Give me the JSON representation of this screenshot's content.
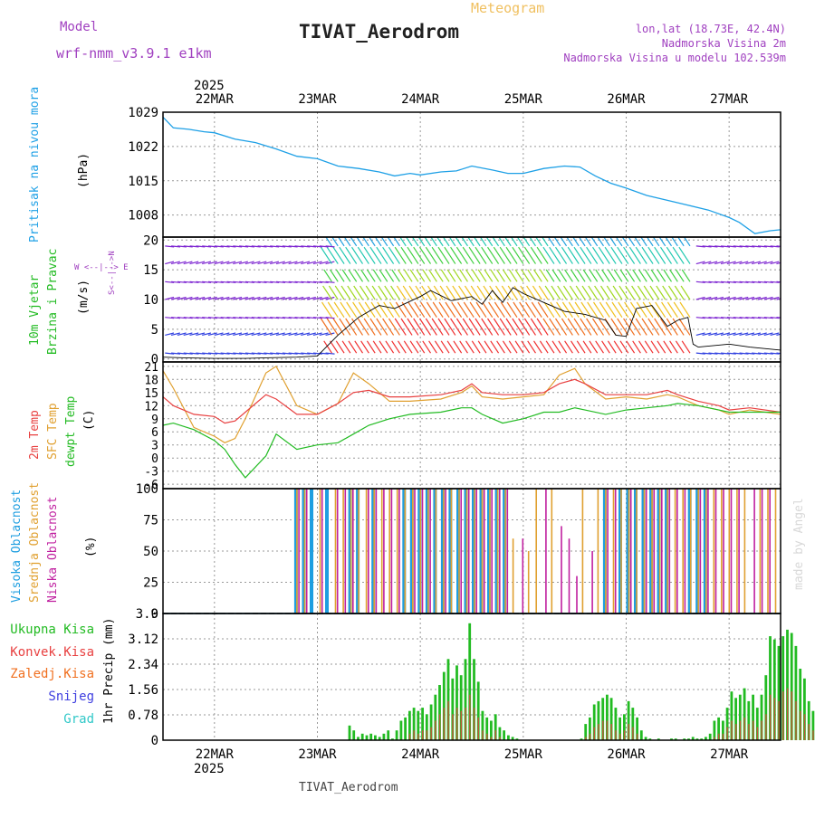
{
  "header": {
    "model_label": "Model",
    "model_name": "wrf-nmm_v3.9.1 e1km",
    "meteogram_label": "Meteogram",
    "station_title": "TIVAT_Aerodrom",
    "lonlat": "lon,lat (18.73E, 42.4N)",
    "elevation": "Nadmorska Visina 2m",
    "model_elevation": "Nadmorska Visina u modelu 102.539m",
    "footer_station": "TIVAT_Aerodrom",
    "credit": "made by Angel"
  },
  "time_axis": {
    "year": "2025",
    "days": [
      "22MAR",
      "23MAR",
      "24MAR",
      "25MAR",
      "26MAR",
      "27MAR"
    ],
    "start_day": 21.5,
    "end_day": 27.5
  },
  "colors": {
    "pressure": "#1ea0e6",
    "temp2m": "#e84040",
    "sfc": "#e0a030",
    "dewpt": "#22bb22",
    "visoka": "#1e9ee0",
    "srednja": "#e0a030",
    "niska": "#c020a0",
    "ukupna": "#22bb22",
    "konvek": "#e84040",
    "zaledj": "#f07020",
    "snijeg": "#4040e0",
    "grad": "#30c8c8",
    "axis_label": "#000000",
    "model_label": "#a040c0"
  },
  "panels": {
    "pressure": {
      "label": "Pritisak na nivou mora",
      "unit": "(hPa)",
      "ticks": [
        "1008",
        "1015",
        "1022",
        "1029"
      ]
    },
    "wind": {
      "label1": "10m Vjetar",
      "label2": "Brzina i Pravac",
      "unit": "(m/s)",
      "ticks": [
        "0",
        "5",
        "10",
        "15",
        "20"
      ],
      "compass": "W <--|--> E",
      "compass_s": "S<--|-->N"
    },
    "temperature": {
      "label_2m": "2m Temp",
      "label_sfc": "SFC Temp",
      "label_dew": "dewpt Temp",
      "unit": "(C)",
      "ticks": [
        "-6",
        "-3",
        "0",
        "3",
        "6",
        "9",
        "12",
        "15",
        "18",
        "21"
      ]
    },
    "clouds": {
      "label_high": "Visoka Oblacnost",
      "label_mid": "Srednja Oblacnost",
      "label_low": "Niska Oblacnost",
      "unit": "(%)",
      "ticks": [
        "0",
        "25",
        "50",
        "75",
        "100"
      ]
    },
    "precip": {
      "unit": "1hr Precip (mm)",
      "ticks": [
        "0",
        "0.78",
        "1.56",
        "2.34",
        "3.12",
        "3.9"
      ],
      "legend": [
        "Ukupna Kisa",
        "Konvek.Kisa",
        "Zaledj.Kisa",
        "Snijeg",
        "Grad"
      ]
    }
  },
  "chart_data": [
    {
      "type": "line",
      "ylabel": "Pritisak na nivou mora (hPa)",
      "ylim": [
        1003.5,
        1029
      ],
      "x": [
        21.5,
        21.6,
        21.75,
        21.9,
        22.0,
        22.2,
        22.4,
        22.6,
        22.8,
        23.0,
        23.2,
        23.4,
        23.6,
        23.75,
        23.9,
        24.0,
        24.2,
        24.35,
        24.5,
        24.7,
        24.85,
        25.0,
        25.2,
        25.4,
        25.55,
        25.7,
        25.85,
        26.0,
        26.2,
        26.4,
        26.6,
        26.8,
        27.0,
        27.1,
        27.25,
        27.4,
        27.5
      ],
      "series": [
        {
          "name": "Pritisak na nivou mora",
          "values": [
            1028.0,
            1025.8,
            1025.5,
            1025.0,
            1024.8,
            1023.5,
            1022.8,
            1021.5,
            1020.0,
            1019.5,
            1018.0,
            1017.5,
            1016.8,
            1016.0,
            1016.5,
            1016.2,
            1016.8,
            1017.0,
            1018.0,
            1017.2,
            1016.5,
            1016.5,
            1017.5,
            1018.0,
            1017.8,
            1016.0,
            1014.5,
            1013.5,
            1012.0,
            1011.0,
            1010.0,
            1009.0,
            1007.5,
            1006.5,
            1004.2,
            1004.8,
            1005.0
          ]
        }
      ]
    },
    {
      "type": "line",
      "ylabel": "10m Vjetar Brzina i Pravac (m/s)",
      "ylim": [
        -0.5,
        20.5
      ],
      "x": [
        21.5,
        21.7,
        22.0,
        22.3,
        22.5,
        22.8,
        23.0,
        23.2,
        23.4,
        23.6,
        23.75,
        24.0,
        24.1,
        24.3,
        24.5,
        24.6,
        24.7,
        24.8,
        24.9,
        25.0,
        25.2,
        25.4,
        25.6,
        25.8,
        25.9,
        26.0,
        26.1,
        26.25,
        26.4,
        26.5,
        26.6,
        26.65,
        26.7,
        27.0,
        27.2,
        27.5
      ],
      "series": [
        {
          "name": "wind speed",
          "values": [
            0.3,
            0.2,
            0.1,
            0.1,
            0.2,
            0.3,
            0.5,
            4.0,
            7.0,
            9.0,
            8.5,
            10.5,
            11.5,
            9.8,
            10.5,
            9.2,
            11.5,
            9.5,
            12.0,
            11.0,
            9.5,
            8.0,
            7.5,
            6.5,
            4.0,
            3.8,
            8.5,
            9.0,
            5.5,
            6.5,
            7.0,
            2.5,
            2.0,
            2.5,
            2.0,
            1.5
          ]
        }
      ]
    },
    {
      "type": "line",
      "ylabel": "(C)",
      "ylim": [
        -7,
        22
      ],
      "x": [
        21.5,
        21.6,
        21.8,
        22.0,
        22.1,
        22.2,
        22.3,
        22.5,
        22.6,
        22.8,
        23.0,
        23.2,
        23.35,
        23.5,
        23.7,
        23.9,
        24.2,
        24.4,
        24.5,
        24.6,
        24.8,
        25.0,
        25.2,
        25.35,
        25.5,
        25.6,
        25.8,
        26.0,
        26.2,
        26.4,
        26.5,
        26.7,
        26.9,
        27.0,
        27.2,
        27.5
      ],
      "series": [
        {
          "name": "2m Temp",
          "values": [
            14.0,
            12.0,
            10.0,
            9.5,
            8.0,
            8.5,
            10.5,
            14.5,
            13.5,
            10.0,
            10.0,
            12.5,
            15.0,
            15.5,
            14.0,
            14.0,
            14.5,
            15.5,
            17.0,
            15.0,
            14.5,
            14.5,
            15.0,
            17.0,
            18.0,
            17.0,
            14.5,
            14.5,
            14.5,
            15.5,
            14.5,
            13.0,
            12.0,
            11.0,
            11.5,
            10.5
          ]
        },
        {
          "name": "SFC Temp",
          "values": [
            20.0,
            16.0,
            7.0,
            5.0,
            3.5,
            4.5,
            9.0,
            19.5,
            21.0,
            12.0,
            10.0,
            12.5,
            19.5,
            17.0,
            13.0,
            13.0,
            13.5,
            15.0,
            16.5,
            14.0,
            13.5,
            14.0,
            14.5,
            19.0,
            20.5,
            17.0,
            13.5,
            14.0,
            13.5,
            14.5,
            14.0,
            12.0,
            11.0,
            10.0,
            11.0,
            10.0
          ]
        },
        {
          "name": "dewpt Temp",
          "values": [
            7.5,
            8.0,
            6.5,
            4.0,
            2.0,
            -1.5,
            -4.5,
            0.5,
            5.5,
            2.0,
            3.0,
            3.5,
            5.5,
            7.5,
            9.0,
            10.0,
            10.5,
            11.5,
            11.5,
            10.0,
            8.0,
            9.0,
            10.5,
            10.5,
            11.5,
            11.0,
            10.0,
            11.0,
            11.5,
            12.0,
            12.5,
            12.0,
            11.0,
            10.5,
            10.5,
            10.5
          ]
        }
      ]
    },
    {
      "type": "bar",
      "ylabel": "(%)",
      "ylim": [
        0,
        100
      ],
      "series": [
        {
          "name": "Visoka Oblacnost",
          "values": [
            0,
            0,
            0,
            0,
            0,
            0,
            0,
            0,
            0,
            0,
            0,
            0,
            0,
            0,
            0,
            0,
            0,
            100,
            100,
            100,
            0,
            100,
            0,
            0,
            100,
            100,
            0,
            100,
            0,
            0,
            0,
            100,
            100,
            100,
            100,
            100,
            100,
            100,
            100,
            100,
            100,
            100,
            100,
            100,
            100,
            0,
            0,
            0,
            0,
            0,
            0,
            0,
            0,
            0,
            0,
            0,
            0,
            100,
            0,
            100,
            100,
            100,
            100,
            100,
            100,
            100,
            0,
            0,
            100,
            100,
            100,
            0,
            0,
            0,
            0,
            0,
            0,
            0,
            0,
            0
          ]
        },
        {
          "name": "Srednja Oblacnost",
          "values": [
            0,
            0,
            0,
            0,
            0,
            0,
            0,
            0,
            0,
            0,
            0,
            0,
            0,
            0,
            0,
            0,
            0,
            100,
            100,
            0,
            100,
            0,
            100,
            100,
            100,
            100,
            100,
            100,
            100,
            100,
            100,
            100,
            100,
            100,
            100,
            100,
            100,
            100,
            100,
            100,
            100,
            100,
            100,
            100,
            100,
            60,
            0,
            50,
            100,
            0,
            100,
            0,
            0,
            0,
            100,
            0,
            100,
            100,
            100,
            100,
            100,
            100,
            100,
            100,
            100,
            100,
            100,
            100,
            100,
            100,
            100,
            100,
            100,
            100,
            100,
            100,
            0,
            100,
            100,
            100
          ]
        },
        {
          "name": "Niska Oblacnost",
          "values": [
            0,
            0,
            0,
            0,
            0,
            0,
            0,
            0,
            0,
            0,
            0,
            0,
            0,
            0,
            0,
            0,
            0,
            100,
            100,
            0,
            100,
            0,
            100,
            100,
            100,
            0,
            100,
            100,
            100,
            100,
            100,
            0,
            100,
            100,
            100,
            0,
            100,
            0,
            100,
            100,
            100,
            100,
            100,
            100,
            100,
            0,
            60,
            0,
            0,
            100,
            0,
            70,
            60,
            30,
            0,
            50,
            0,
            100,
            100,
            0,
            100,
            0,
            100,
            100,
            100,
            100,
            100,
            100,
            0,
            100,
            100,
            100,
            100,
            100,
            100,
            0,
            100,
            100,
            100,
            0
          ]
        }
      ]
    },
    {
      "type": "bar",
      "ylabel": "1hr Precip (mm)",
      "ylim": [
        0,
        3.9
      ],
      "x_start": 23.3,
      "x_step": 0.0417,
      "series": [
        {
          "name": "Ukupna Kisa",
          "values": [
            0.45,
            0.3,
            0.1,
            0.2,
            0.15,
            0.2,
            0.15,
            0.1,
            0.2,
            0.3,
            0.05,
            0.3,
            0.6,
            0.7,
            0.9,
            1.0,
            0.9,
            1.0,
            0.8,
            1.1,
            1.4,
            1.7,
            2.1,
            2.5,
            1.9,
            2.3,
            2.0,
            2.5,
            3.6,
            2.5,
            1.8,
            0.9,
            0.7,
            0.6,
            0.8,
            0.4,
            0.3,
            0.15,
            0.1,
            0.05,
            0.0,
            0.0,
            0.0,
            0.0,
            0.0,
            0.0,
            0.0,
            0.0,
            0.0,
            0.0,
            0.0,
            0.0,
            0.0,
            0.0,
            0.05,
            0.5,
            0.7,
            1.1,
            1.2,
            1.3,
            1.4,
            1.3,
            1.0,
            0.7,
            0.8,
            1.2,
            1.0,
            0.7,
            0.3,
            0.1,
            0.05,
            0.0,
            0.05,
            0.0,
            0.0,
            0.05,
            0.05,
            0.0,
            0.05,
            0.05,
            0.1,
            0.05,
            0.05,
            0.1,
            0.2,
            0.6,
            0.7,
            0.6,
            1.0,
            1.5,
            1.3,
            1.4,
            1.6,
            1.2,
            1.4,
            1.0,
            1.4,
            2.0,
            3.2,
            3.1,
            2.9,
            3.2,
            3.4,
            3.3,
            2.9,
            2.2,
            1.9,
            1.2,
            0.9,
            0.4
          ]
        },
        {
          "name": "Konvek.Kisa",
          "values": [
            0.0,
            0.0,
            0.0,
            0.0,
            0.0,
            0.0,
            0.0,
            0.0,
            0.0,
            0.0,
            0.0,
            0.0,
            0.0,
            0.0,
            0.2,
            0.3,
            0.2,
            0.3,
            0.3,
            0.4,
            0.6,
            0.8,
            1.0,
            1.2,
            0.8,
            1.0,
            0.9,
            1.0,
            1.4,
            1.0,
            0.7,
            0.3,
            0.2,
            0.1,
            0.3,
            0.1,
            0.0,
            0.0,
            0.0,
            0.0,
            0.0,
            0.0,
            0.0,
            0.0,
            0.0,
            0.0,
            0.0,
            0.0,
            0.0,
            0.0,
            0.0,
            0.0,
            0.0,
            0.0,
            0.0,
            0.1,
            0.2,
            0.4,
            0.5,
            0.6,
            0.6,
            0.5,
            0.3,
            0.2,
            0.3,
            0.5,
            0.4,
            0.2,
            0.0,
            0.0,
            0.0,
            0.0,
            0.0,
            0.0,
            0.0,
            0.0,
            0.0,
            0.0,
            0.0,
            0.0,
            0.0,
            0.0,
            0.0,
            0.0,
            0.0,
            0.1,
            0.2,
            0.2,
            0.4,
            0.6,
            0.5,
            0.6,
            0.7,
            0.5,
            0.6,
            0.4,
            0.6,
            0.8,
            1.4,
            1.3,
            1.2,
            1.5,
            1.6,
            1.5,
            1.2,
            0.9,
            0.8,
            0.5,
            0.3,
            0.1
          ]
        }
      ]
    }
  ]
}
